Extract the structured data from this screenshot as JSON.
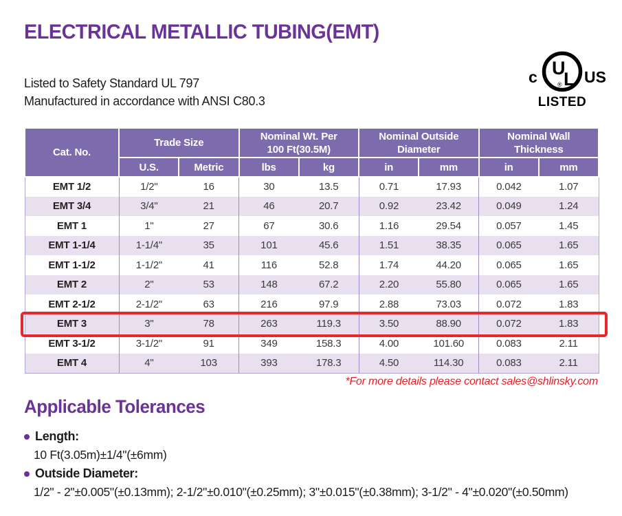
{
  "page": {
    "title": "ELECTRICAL METALLIC TUBING(EMT)",
    "subtitle_line1": "Listed to Safety Standard UL 797",
    "subtitle_line2": "Manufactured in accordance with ANSI C80.3"
  },
  "ul_mark": {
    "center": "UL",
    "registered": "®",
    "left": "c",
    "right": "US",
    "caption": "LISTED"
  },
  "table": {
    "headers": {
      "cat_no": "Cat. No.",
      "trade_size": "Trade Size",
      "nominal_wt": [
        "Nominal Wt. Per",
        "100 Ft(30.5M)"
      ],
      "nominal_od": [
        "Nominal Outside",
        "Diameter"
      ],
      "nominal_wall": [
        "Nominal Wall",
        "Thickness"
      ]
    },
    "subheaders": [
      "U.S.",
      "Metric",
      "lbs",
      "kg",
      "in",
      "mm",
      "in",
      "mm"
    ],
    "rows": [
      [
        "EMT 1/2",
        "1/2\"",
        "16",
        "30",
        "13.5",
        "0.71",
        "17.93",
        "0.042",
        "1.07"
      ],
      [
        "EMT 3/4",
        "3/4\"",
        "21",
        "46",
        "20.7",
        "0.92",
        "23.42",
        "0.049",
        "1.24"
      ],
      [
        "EMT 1",
        "1\"",
        "27",
        "67",
        "30.6",
        "1.16",
        "29.54",
        "0.057",
        "1.45"
      ],
      [
        "EMT 1-1/4",
        "1-1/4\"",
        "35",
        "101",
        "45.6",
        "1.51",
        "38.35",
        "0.065",
        "1.65"
      ],
      [
        "EMT 1-1/2",
        "1-1/2\"",
        "41",
        "116",
        "52.8",
        "1.74",
        "44.20",
        "0.065",
        "1.65"
      ],
      [
        "EMT 2",
        "2\"",
        "53",
        "148",
        "67.2",
        "2.20",
        "55.80",
        "0.065",
        "1.65"
      ],
      [
        "EMT 2-1/2",
        "2-1/2\"",
        "63",
        "216",
        "97.9",
        "2.88",
        "73.03",
        "0.072",
        "1.83"
      ],
      [
        "EMT 3",
        "3\"",
        "78",
        "263",
        "119.3",
        "3.50",
        "88.90",
        "0.072",
        "1.83"
      ],
      [
        "EMT 3-1/2",
        "3-1/2\"",
        "91",
        "349",
        "158.3",
        "4.00",
        "101.60",
        "0.083",
        "2.11"
      ],
      [
        "EMT 4",
        "4\"",
        "103",
        "393",
        "178.3",
        "4.50",
        "114.30",
        "0.083",
        "2.11"
      ]
    ],
    "highlight_row_index": 7
  },
  "note": "*For more details please contact sales@shlinsky.com",
  "tolerances": {
    "heading": "Applicable Tolerances",
    "items": [
      {
        "label": "Length:",
        "value": "10 Ft(3.05m)±1/4\"(±6mm)"
      },
      {
        "label": "Outside Diameter:",
        "value": "1/2\" - 2\"±0.005\"(±0.13mm); 2-1/2\"±0.010\"(±0.25mm); 3\"±0.015\"(±0.38mm); 3-1/2\" - 4\"±0.020\"(±0.50mm)"
      }
    ]
  },
  "colors": {
    "accent_purple": "#6a3398",
    "header_purple": "#7c6cad",
    "row_alt_purple": "#e8e0ee",
    "highlight_red": "#e8262b",
    "note_red": "#ed1c24"
  }
}
